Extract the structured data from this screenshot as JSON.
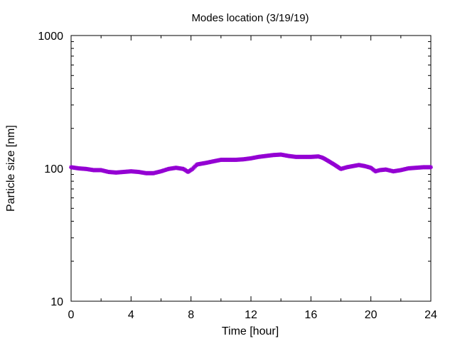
{
  "chart_data": {
    "type": "scatter",
    "title": "Modes location (3/19/19)",
    "xlabel": "Time [hour]",
    "ylabel": "Particle size [nm]",
    "xlim": [
      0,
      24
    ],
    "ylim": [
      10,
      1000
    ],
    "y_scale": "log",
    "grid": false,
    "legend": "none",
    "x_ticks": [
      0,
      4,
      8,
      12,
      16,
      20,
      24
    ],
    "x_tick_labels": [
      "0",
      "4",
      "8",
      "12",
      "16",
      "20",
      "24"
    ],
    "y_ticks": [
      10,
      100,
      1000
    ],
    "y_tick_labels": [
      "10",
      "100",
      "1000"
    ],
    "marker_color": "#9400d3",
    "series": [
      {
        "x": [
          0.0,
          0.5,
          1.0,
          1.5,
          2.0,
          2.5,
          3.0,
          3.5,
          4.0,
          4.5,
          5.0,
          5.5,
          6.0,
          6.5,
          7.0,
          7.5,
          7.8,
          8.1,
          8.4,
          9.0,
          9.5,
          10.0,
          10.5,
          11.0,
          11.5,
          12.0,
          12.5,
          13.0,
          13.5,
          14.0,
          14.5,
          15.0,
          15.5,
          16.0,
          16.5,
          16.8,
          17.2,
          17.6,
          18.0,
          18.4,
          18.8,
          19.2,
          19.6,
          20.0,
          20.3,
          20.6,
          21.0,
          21.5,
          22.0,
          22.5,
          23.0,
          23.5,
          24.0
        ],
        "y": [
          102,
          100,
          99,
          97,
          97,
          94,
          93,
          94,
          95,
          94,
          92,
          92,
          95,
          99,
          101,
          99,
          94,
          99,
          107,
          110,
          113,
          116,
          116,
          116,
          117,
          119,
          122,
          124,
          126,
          127,
          124,
          122,
          122,
          122,
          123,
          120,
          113,
          106,
          99,
          102,
          104,
          106,
          104,
          101,
          95,
          97,
          98,
          95,
          97,
          100,
          101,
          102,
          102
        ]
      }
    ]
  }
}
